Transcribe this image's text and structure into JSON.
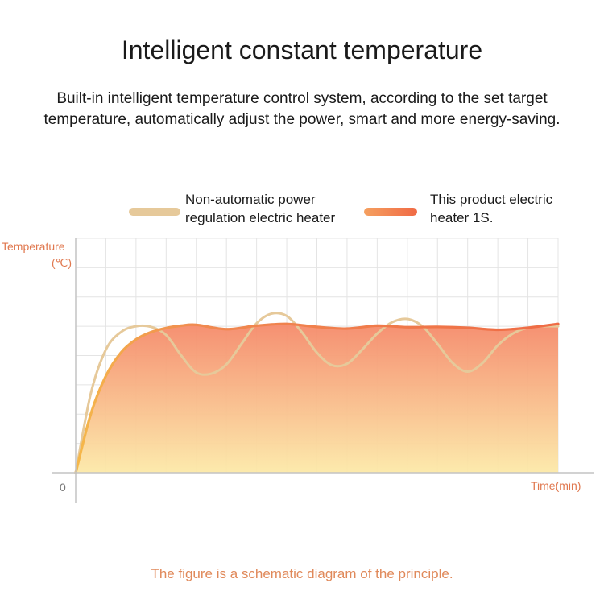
{
  "header": {
    "title": "Intelligent constant temperature",
    "description_lines": [
      "Built-in intelligent temperature control system, according to the set target",
      "temperature, automatically adjust the power, smart and more energy-saving."
    ]
  },
  "legend": [
    {
      "lines": [
        "Non-automatic power",
        "regulation electric heater"
      ],
      "color": "#e6c99a"
    },
    {
      "lines": [
        "This product electric",
        "heater 1S."
      ],
      "color": "#f07a4a"
    }
  ],
  "footnote": "The figure is a schematic diagram of the principle.",
  "chart_data": {
    "type": "line",
    "title": "",
    "ylabel_lines": [
      "Temperature",
      "(℃)"
    ],
    "xlabel": "Time(min)",
    "origin_label": "0",
    "grid": true,
    "legend_position": "top",
    "xlim": [
      0,
      16
    ],
    "ylim": [
      0,
      8
    ],
    "series": [
      {
        "name": "Non-automatic power regulation electric heater",
        "color": "#e6c99a",
        "points": [
          [
            0,
            0
          ],
          [
            0.5,
            2.7
          ],
          [
            1,
            4.2
          ],
          [
            1.5,
            4.8
          ],
          [
            2,
            5.0
          ],
          [
            2.5,
            4.98
          ],
          [
            3,
            4.7
          ],
          [
            3.5,
            4.0
          ],
          [
            4,
            3.42
          ],
          [
            4.5,
            3.38
          ],
          [
            5,
            3.7
          ],
          [
            5.5,
            4.4
          ],
          [
            6,
            5.1
          ],
          [
            6.5,
            5.43
          ],
          [
            7,
            5.35
          ],
          [
            7.5,
            4.8
          ],
          [
            8,
            4.1
          ],
          [
            8.5,
            3.67
          ],
          [
            9,
            3.72
          ],
          [
            9.5,
            4.2
          ],
          [
            10,
            4.75
          ],
          [
            10.5,
            5.14
          ],
          [
            11,
            5.25
          ],
          [
            11.5,
            5.0
          ],
          [
            12,
            4.4
          ],
          [
            12.5,
            3.75
          ],
          [
            13,
            3.45
          ],
          [
            13.5,
            3.75
          ],
          [
            14,
            4.35
          ],
          [
            14.5,
            4.75
          ],
          [
            15,
            4.95
          ],
          [
            15.5,
            5.0
          ],
          [
            16,
            5.0
          ]
        ]
      },
      {
        "name": "This product electric heater 1S.",
        "color": "#f07a4a",
        "fill_top": "#f58a6a",
        "fill_bottom": "#fce9a8",
        "points": [
          [
            0,
            0
          ],
          [
            0.5,
            2.0
          ],
          [
            1,
            3.3
          ],
          [
            1.5,
            4.1
          ],
          [
            2,
            4.55
          ],
          [
            2.5,
            4.8
          ],
          [
            3,
            4.94
          ],
          [
            3.5,
            5.02
          ],
          [
            4,
            5.05
          ],
          [
            5,
            4.9
          ],
          [
            6,
            5.02
          ],
          [
            7,
            5.08
          ],
          [
            8,
            4.98
          ],
          [
            9,
            4.92
          ],
          [
            10,
            5.02
          ],
          [
            11,
            4.97
          ],
          [
            12,
            4.98
          ],
          [
            13,
            4.95
          ],
          [
            14,
            4.88
          ],
          [
            15,
            4.95
          ],
          [
            16,
            5.08
          ]
        ]
      }
    ]
  }
}
